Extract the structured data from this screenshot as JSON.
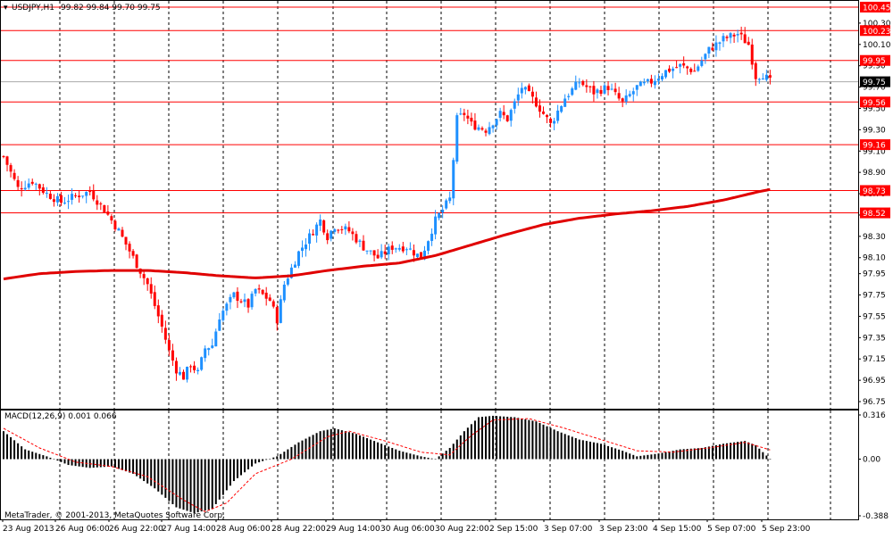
{
  "header": {
    "symbol": "USDJPY,H1",
    "ohlc": "99.82 99.84 99.70 99.75"
  },
  "macd_header": {
    "label": "MACD(12,26,9) 0.001 0.066"
  },
  "copyright": "MetaTrader, © 2001-2013, MetaQuotes Software Corp.",
  "colors": {
    "bull": "#1e90ff",
    "bear": "#ff0000",
    "level": "#ff0000",
    "ma": "#e00000",
    "histogram": "#000000",
    "current_price_bg": "#000000"
  },
  "chart_data": [
    {
      "type": "candlestick",
      "title": "USDJPY,H1",
      "ylim": [
        96.7,
        100.5
      ],
      "y_ticks": [
        "100.30",
        "100.10",
        "99.90",
        "99.70",
        "99.50",
        "99.30",
        "99.10",
        "98.90",
        "98.70",
        "98.50",
        "98.30",
        "98.10",
        "97.95",
        "97.75",
        "97.55",
        "97.35",
        "97.15",
        "96.95",
        "96.75"
      ],
      "x_ticks": [
        "23 Aug 2013",
        "26 Aug 06:00",
        "26 Aug 22:00",
        "27 Aug 14:00",
        "28 Aug 06:00",
        "28 Aug 22:00",
        "29 Aug 14:00",
        "30 Aug 06:00",
        "30 Aug 22:00",
        "2 Sep 15:00",
        "3 Sep 07:00",
        "3 Sep 23:00",
        "4 Sep 15:00",
        "5 Sep 07:00",
        "5 Sep 23:00"
      ],
      "horizontal_levels": [
        "100.45",
        "100.23",
        "99.95",
        "99.56",
        "99.16",
        "98.73",
        "98.52"
      ],
      "current_price": "99.75",
      "close_profile": [
        [
          0,
          99.05
        ],
        [
          4,
          98.75
        ],
        [
          8,
          98.82
        ],
        [
          12,
          98.7
        ],
        [
          16,
          98.62
        ],
        [
          20,
          98.68
        ],
        [
          24,
          98.72
        ],
        [
          28,
          98.55
        ],
        [
          32,
          98.35
        ],
        [
          36,
          98.1
        ],
        [
          40,
          97.85
        ],
        [
          44,
          97.45
        ],
        [
          46,
          97.22
        ],
        [
          48,
          97.05
        ],
        [
          50,
          96.98
        ],
        [
          52,
          97.1
        ],
        [
          54,
          97.02
        ],
        [
          56,
          97.25
        ],
        [
          58,
          97.28
        ],
        [
          60,
          97.55
        ],
        [
          64,
          97.75
        ],
        [
          68,
          97.65
        ],
        [
          70,
          97.8
        ],
        [
          74,
          97.7
        ],
        [
          76,
          97.52
        ],
        [
          78,
          97.85
        ],
        [
          82,
          98.15
        ],
        [
          86,
          98.35
        ],
        [
          88,
          98.45
        ],
        [
          90,
          98.3
        ],
        [
          92,
          98.4
        ],
        [
          96,
          98.35
        ],
        [
          100,
          98.2
        ],
        [
          104,
          98.1
        ],
        [
          108,
          98.2
        ],
        [
          112,
          98.2
        ],
        [
          116,
          98.1
        ],
        [
          120,
          98.45
        ],
        [
          124,
          98.65
        ],
        [
          126,
          99.4
        ],
        [
          128,
          99.45
        ],
        [
          130,
          99.35
        ],
        [
          134,
          99.3
        ],
        [
          138,
          99.45
        ],
        [
          140,
          99.4
        ],
        [
          144,
          99.7
        ],
        [
          148,
          99.55
        ],
        [
          152,
          99.35
        ],
        [
          156,
          99.6
        ],
        [
          160,
          99.75
        ],
        [
          164,
          99.65
        ],
        [
          168,
          99.7
        ],
        [
          172,
          99.55
        ],
        [
          176,
          99.7
        ],
        [
          180,
          99.75
        ],
        [
          184,
          99.85
        ],
        [
          188,
          99.9
        ],
        [
          192,
          99.85
        ],
        [
          196,
          100.05
        ],
        [
          200,
          100.15
        ],
        [
          204,
          100.2
        ],
        [
          207,
          100.1
        ],
        [
          209,
          99.8
        ],
        [
          211,
          99.82
        ],
        [
          213,
          99.75
        ]
      ],
      "series": [
        {
          "name": "MA",
          "type": "line",
          "points": [
            [
              0,
              97.9
            ],
            [
              10,
              97.95
            ],
            [
              20,
              97.97
            ],
            [
              30,
              97.98
            ],
            [
              40,
              97.98
            ],
            [
              50,
              97.96
            ],
            [
              60,
              97.93
            ],
            [
              70,
              97.91
            ],
            [
              80,
              97.93
            ],
            [
              90,
              97.98
            ],
            [
              100,
              98.02
            ],
            [
              110,
              98.05
            ],
            [
              120,
              98.12
            ],
            [
              130,
              98.22
            ],
            [
              140,
              98.32
            ],
            [
              150,
              98.41
            ],
            [
              160,
              98.47
            ],
            [
              170,
              98.51
            ],
            [
              180,
              98.54
            ],
            [
              190,
              98.58
            ],
            [
              200,
              98.64
            ],
            [
              210,
              98.72
            ],
            [
              213,
              98.74
            ]
          ]
        }
      ]
    },
    {
      "type": "bar",
      "title": "MACD(12,26,9) 0.001 0.066",
      "ylim": [
        -0.388,
        0.316
      ],
      "y_ticks": [
        "0.316",
        "0.00",
        "-0.388"
      ],
      "macd_profile": [
        [
          0,
          0.2
        ],
        [
          6,
          0.07
        ],
        [
          12,
          0.02
        ],
        [
          18,
          -0.04
        ],
        [
          24,
          -0.06
        ],
        [
          30,
          -0.05
        ],
        [
          36,
          -0.1
        ],
        [
          42,
          -0.2
        ],
        [
          48,
          -0.33
        ],
        [
          53,
          -0.37
        ],
        [
          58,
          -0.34
        ],
        [
          64,
          -0.15
        ],
        [
          70,
          -0.03
        ],
        [
          76,
          0.02
        ],
        [
          82,
          0.12
        ],
        [
          88,
          0.2
        ],
        [
          92,
          0.22
        ],
        [
          98,
          0.18
        ],
        [
          104,
          0.12
        ],
        [
          110,
          0.06
        ],
        [
          116,
          0.02
        ],
        [
          120,
          0.0
        ],
        [
          124,
          0.08
        ],
        [
          128,
          0.2
        ],
        [
          132,
          0.3
        ],
        [
          136,
          0.31
        ],
        [
          142,
          0.3
        ],
        [
          148,
          0.27
        ],
        [
          154,
          0.2
        ],
        [
          160,
          0.14
        ],
        [
          166,
          0.11
        ],
        [
          172,
          0.06
        ],
        [
          176,
          0.02
        ],
        [
          182,
          0.04
        ],
        [
          188,
          0.07
        ],
        [
          194,
          0.08
        ],
        [
          200,
          0.11
        ],
        [
          206,
          0.13
        ],
        [
          209,
          0.1
        ],
        [
          211,
          0.05
        ],
        [
          213,
          0.001
        ]
      ],
      "signal_profile": [
        [
          0,
          0.22
        ],
        [
          10,
          0.08
        ],
        [
          20,
          -0.02
        ],
        [
          30,
          -0.05
        ],
        [
          40,
          -0.12
        ],
        [
          50,
          -0.28
        ],
        [
          56,
          -0.36
        ],
        [
          62,
          -0.3
        ],
        [
          70,
          -0.1
        ],
        [
          80,
          0.0
        ],
        [
          90,
          0.16
        ],
        [
          96,
          0.2
        ],
        [
          106,
          0.13
        ],
        [
          116,
          0.05
        ],
        [
          124,
          0.03
        ],
        [
          130,
          0.17
        ],
        [
          136,
          0.28
        ],
        [
          146,
          0.29
        ],
        [
          156,
          0.22
        ],
        [
          166,
          0.14
        ],
        [
          176,
          0.06
        ],
        [
          186,
          0.05
        ],
        [
          196,
          0.08
        ],
        [
          206,
          0.12
        ],
        [
          213,
          0.066
        ]
      ]
    }
  ]
}
